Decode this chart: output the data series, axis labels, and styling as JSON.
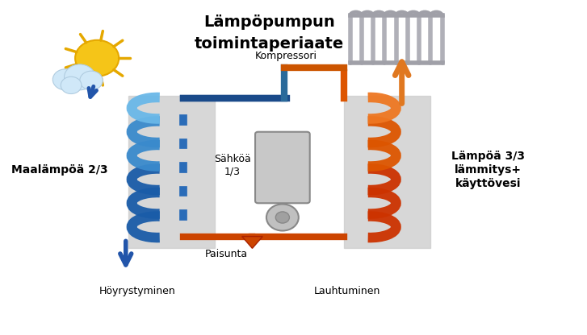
{
  "title_line1": "Lämpöpumpun",
  "title_line2": "toimintaperiaate",
  "label_left": "Maalämpöä 2/3",
  "label_right_line1": "Lämpöä 3/3",
  "label_right_line2": "lämmitys+",
  "label_right_line3": "käyttövesi",
  "label_kompressori": "Kompressori",
  "label_sahkoa": "Sähköä\n1/3",
  "label_paisunta": "Paisunta",
  "label_hoyrystyminen": "Höyrystyminen",
  "label_lauhtuminen": "Lauhtuminen",
  "bg_color": "#ffffff",
  "coil_left_color": "#4a90d9",
  "coil_right_color": "#cc4400",
  "arrow_orange_color": "#e07820",
  "arrow_blue_color": "#2255aa",
  "panel_color": "#d0d0d0",
  "sun_color": "#f5c518",
  "cloud_color": "#d0e8f8"
}
